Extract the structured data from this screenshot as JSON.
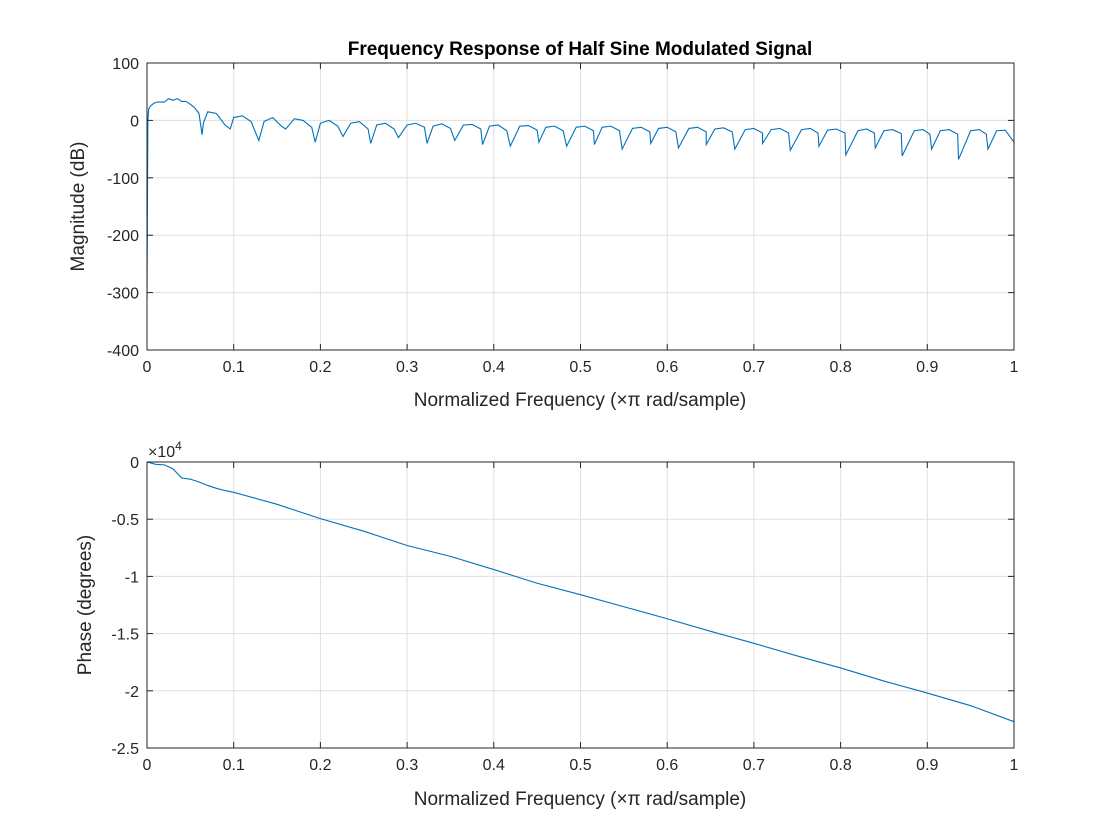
{
  "figure": {
    "title": "Frequency Response of Half Sine Modulated Signal"
  },
  "chart_data": [
    {
      "type": "line",
      "title": "Frequency Response of Half Sine Modulated Signal",
      "xlabel": "Normalized Frequency  (×π rad/sample)",
      "ylabel": "Magnitude (dB)",
      "xlim": [
        0,
        1
      ],
      "ylim": [
        -400,
        100
      ],
      "xticks": [
        0,
        0.1,
        0.2,
        0.3,
        0.4,
        0.5,
        0.6,
        0.7,
        0.8,
        0.9,
        1
      ],
      "xtick_labels": [
        "0",
        "0.1",
        "0.2",
        "0.3",
        "0.4",
        "0.5",
        "0.6",
        "0.7",
        "0.8",
        "0.9",
        "1"
      ],
      "yticks": [
        -400,
        -300,
        -200,
        -100,
        0,
        100
      ],
      "ytick_labels": [
        "-400",
        "-300",
        "-200",
        "-100",
        "0",
        "100"
      ],
      "grid": true,
      "color": "#0072bd",
      "series": [
        {
          "x": [
            0,
            0.0005,
            0.001,
            0.002,
            0.004,
            0.008,
            0.012,
            0.02,
            0.025,
            0.03,
            0.035,
            0.04,
            0.045,
            0.05,
            0.055,
            0.06,
            0.0635,
            0.065,
            0.07,
            0.08,
            0.09,
            0.096,
            0.1,
            0.11,
            0.12,
            0.129,
            0.135,
            0.145,
            0.155,
            0.16,
            0.17,
            0.18,
            0.19,
            0.194,
            0.2,
            0.21,
            0.22,
            0.226,
            0.235,
            0.245,
            0.255,
            0.258,
            0.265,
            0.275,
            0.285,
            0.29,
            0.3,
            0.31,
            0.32,
            0.323,
            0.33,
            0.34,
            0.35,
            0.355,
            0.365,
            0.375,
            0.385,
            0.387,
            0.395,
            0.405,
            0.415,
            0.419,
            0.43,
            0.44,
            0.45,
            0.452,
            0.46,
            0.47,
            0.48,
            0.484,
            0.495,
            0.505,
            0.515,
            0.516,
            0.525,
            0.535,
            0.545,
            0.548,
            0.56,
            0.57,
            0.58,
            0.581,
            0.59,
            0.6,
            0.61,
            0.613,
            0.625,
            0.635,
            0.645,
            0.645,
            0.655,
            0.665,
            0.675,
            0.678,
            0.69,
            0.7,
            0.71,
            0.71,
            0.72,
            0.73,
            0.74,
            0.742,
            0.755,
            0.765,
            0.774,
            0.775,
            0.785,
            0.795,
            0.805,
            0.806,
            0.82,
            0.83,
            0.839,
            0.84,
            0.85,
            0.86,
            0.87,
            0.871,
            0.885,
            0.895,
            0.903,
            0.905,
            0.915,
            0.925,
            0.935,
            0.936,
            0.95,
            0.96,
            0.968,
            0.97,
            0.98,
            0.99,
            1.0
          ],
          "y": [
            -315,
            -150,
            0,
            20,
            25,
            30,
            32,
            32,
            38,
            35,
            38,
            33,
            33,
            28,
            22,
            12,
            -25,
            -5,
            15,
            12,
            -8,
            -15,
            5,
            8,
            -2,
            -35,
            -2,
            5,
            -10,
            -15,
            3,
            0,
            -12,
            -38,
            -5,
            0,
            -10,
            -28,
            -5,
            -2,
            -15,
            -40,
            -8,
            -5,
            -15,
            -30,
            -8,
            -5,
            -12,
            -40,
            -10,
            -6,
            -14,
            -35,
            -8,
            -7,
            -15,
            -42,
            -10,
            -8,
            -18,
            -45,
            -10,
            -9,
            -17,
            -38,
            -12,
            -10,
            -18,
            -45,
            -12,
            -10,
            -18,
            -42,
            -12,
            -10,
            -18,
            -50,
            -14,
            -12,
            -20,
            -40,
            -14,
            -12,
            -20,
            -48,
            -14,
            -12,
            -20,
            -42,
            -15,
            -13,
            -20,
            -50,
            -16,
            -14,
            -22,
            -40,
            -16,
            -14,
            -22,
            -52,
            -16,
            -14,
            -22,
            -45,
            -17,
            -15,
            -22,
            -60,
            -18,
            -15,
            -22,
            -48,
            -18,
            -16,
            -23,
            -62,
            -18,
            -16,
            -24,
            -50,
            -18,
            -16,
            -24,
            -68,
            -18,
            -16,
            -24,
            -50,
            -18,
            -17,
            -38
          ]
        }
      ]
    },
    {
      "type": "line",
      "xlabel": "Normalized Frequency  (×π rad/sample)",
      "ylabel": "Phase (degrees)",
      "xlim": [
        0,
        1
      ],
      "ylim": [
        -25000,
        0
      ],
      "xticks": [
        0,
        0.1,
        0.2,
        0.3,
        0.4,
        0.5,
        0.6,
        0.7,
        0.8,
        0.9,
        1
      ],
      "xtick_labels": [
        "0",
        "0.1",
        "0.2",
        "0.3",
        "0.4",
        "0.5",
        "0.6",
        "0.7",
        "0.8",
        "0.9",
        "1"
      ],
      "yticks": [
        -25000,
        -20000,
        -15000,
        -10000,
        -5000,
        0
      ],
      "ytick_labels": [
        "-2.5",
        "-2",
        "-1.5",
        "-1",
        "-0.5",
        "0"
      ],
      "y_exponent_base": "×10",
      "y_exponent_power": "4",
      "grid": true,
      "color": "#0072bd",
      "series": [
        {
          "x": [
            0,
            0.01,
            0.02,
            0.03,
            0.04,
            0.05,
            0.06,
            0.07,
            0.08,
            0.09,
            0.1,
            0.15,
            0.2,
            0.25,
            0.3,
            0.35,
            0.4,
            0.45,
            0.5,
            0.55,
            0.6,
            0.65,
            0.7,
            0.75,
            0.8,
            0.85,
            0.9,
            0.95,
            1.0
          ],
          "y": [
            0,
            -200,
            -250,
            -600,
            -1400,
            -1500,
            -1750,
            -2050,
            -2300,
            -2500,
            -2650,
            -3700,
            -4950,
            -6050,
            -7300,
            -8250,
            -9400,
            -10600,
            -11600,
            -12650,
            -13700,
            -14800,
            -15850,
            -16950,
            -18000,
            -19150,
            -20200,
            -21300,
            -22700
          ]
        }
      ]
    }
  ]
}
